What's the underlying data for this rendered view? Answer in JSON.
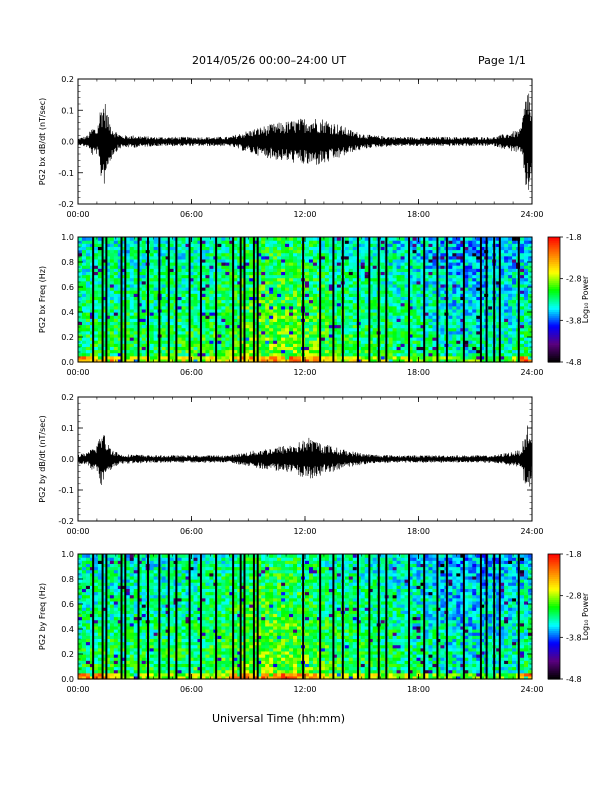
{
  "page": {
    "title": "2014/05/26  00:00–24:00 UT",
    "page_label": "Page 1/1",
    "xlabel": "Universal Time (hh:mm)"
  },
  "colors": {
    "trace": "#000000",
    "colormap": [
      "#000000",
      "#5a007f",
      "#0000ff",
      "#00ffff",
      "#00ff00",
      "#ffff00",
      "#ff8000",
      "#ff0000"
    ]
  },
  "chart_data": [
    {
      "type": "line",
      "ylabel": "PG2 bx dB/dt (nT/sec)",
      "xlim": [
        0,
        24
      ],
      "ylim": [
        -0.2,
        0.2
      ],
      "x_ticks": [
        "00:00",
        "06:00",
        "12:00",
        "18:00",
        "24:00"
      ],
      "y_ticks": [
        "-0.2",
        "-0.1",
        "0.0",
        "0.1",
        "0.2"
      ],
      "series": [
        {
          "x": [
            0.0,
            0.5,
            0.8,
            1.0,
            1.2,
            1.4,
            1.6,
            1.9,
            2.3,
            3.0,
            4.0,
            5.0,
            6.0,
            7.0,
            8.0,
            8.7,
            9.5,
            10.5,
            11.5,
            12.2,
            13.0,
            13.8,
            14.5,
            15.5,
            17.0,
            18.0,
            20.0,
            22.0,
            23.4,
            23.7,
            23.8,
            24.0
          ],
          "amplitude": [
            0.01,
            0.02,
            0.05,
            0.04,
            0.12,
            0.14,
            0.08,
            0.04,
            0.02,
            0.02,
            0.015,
            0.015,
            0.015,
            0.015,
            0.015,
            0.03,
            0.045,
            0.06,
            0.07,
            0.08,
            0.075,
            0.055,
            0.035,
            0.02,
            0.015,
            0.015,
            0.015,
            0.015,
            0.04,
            0.16,
            0.2,
            0.07
          ]
        }
      ]
    },
    {
      "type": "heatmap",
      "ylabel": "PG2 bx Freq (Hz)",
      "xlim": [
        0,
        24
      ],
      "ylim": [
        0,
        1
      ],
      "x_ticks": [
        "00:00",
        "06:00",
        "12:00",
        "18:00",
        "24:00"
      ],
      "y_ticks": [
        "0.0",
        "0.2",
        "0.4",
        "0.6",
        "0.8",
        "1.0"
      ],
      "colorbar": {
        "label": "Log₁₀ Power",
        "range": [
          -4.8,
          -1.8
        ],
        "ticks": [
          "-1.8",
          "-2.8",
          "-3.8",
          "-4.8"
        ]
      },
      "gaps": [
        0.8,
        1.3,
        1.5,
        2.3,
        2.5,
        3.2,
        3.7,
        4.3,
        4.8,
        5.2,
        5.9,
        6.5,
        7.3,
        8.2,
        8.6,
        8.8,
        9.3,
        9.5,
        11.9,
        12.8,
        13.5,
        14.0,
        14.8,
        15.4,
        15.9,
        16.3,
        17.5,
        18.3,
        19.0,
        19.5,
        20.4,
        21.3,
        21.6,
        22.0,
        22.3,
        23.3
      ]
    },
    {
      "type": "line",
      "ylabel": "PG2 by dB/dt (nT/sec)",
      "xlim": [
        0,
        24
      ],
      "ylim": [
        -0.2,
        0.2
      ],
      "x_ticks": [
        "00:00",
        "06:00",
        "12:00",
        "18:00",
        "24:00"
      ],
      "y_ticks": [
        "-0.2",
        "-0.1",
        "0.0",
        "0.1",
        "0.2"
      ],
      "series": [
        {
          "x": [
            0.0,
            0.5,
            0.8,
            1.0,
            1.2,
            1.4,
            1.6,
            1.9,
            2.3,
            3.0,
            4.0,
            5.0,
            6.0,
            7.0,
            8.0,
            8.7,
            9.5,
            10.5,
            11.5,
            12.2,
            13.0,
            13.8,
            14.5,
            15.5,
            17.0,
            18.0,
            20.0,
            22.0,
            23.4,
            23.7,
            23.8,
            24.0
          ],
          "amplitude": [
            0.015,
            0.02,
            0.04,
            0.05,
            0.09,
            0.08,
            0.05,
            0.03,
            0.015,
            0.015,
            0.012,
            0.012,
            0.012,
            0.012,
            0.012,
            0.02,
            0.03,
            0.04,
            0.05,
            0.07,
            0.05,
            0.035,
            0.025,
            0.015,
            0.012,
            0.012,
            0.012,
            0.012,
            0.03,
            0.1,
            0.12,
            0.05
          ]
        }
      ]
    },
    {
      "type": "heatmap",
      "ylabel": "PG2 by Freq (Hz)",
      "xlim": [
        0,
        24
      ],
      "ylim": [
        0,
        1
      ],
      "x_ticks": [
        "00:00",
        "06:00",
        "12:00",
        "18:00",
        "24:00"
      ],
      "y_ticks": [
        "0.0",
        "0.2",
        "0.4",
        "0.6",
        "0.8",
        "1.0"
      ],
      "colorbar": {
        "label": "Log₁₀ Power",
        "range": [
          -4.8,
          -1.8
        ],
        "ticks": [
          "-1.8",
          "-2.8",
          "-3.8",
          "-4.8"
        ]
      },
      "gaps": [
        0.8,
        1.3,
        1.5,
        2.3,
        2.5,
        3.2,
        3.7,
        4.3,
        4.8,
        5.2,
        5.9,
        6.5,
        7.3,
        8.2,
        8.6,
        8.8,
        9.3,
        9.5,
        11.9,
        12.8,
        13.5,
        14.0,
        14.8,
        15.4,
        15.9,
        16.3,
        17.5,
        18.3,
        19.0,
        19.5,
        20.4,
        21.3,
        21.6,
        22.0,
        22.3,
        23.3
      ]
    }
  ]
}
